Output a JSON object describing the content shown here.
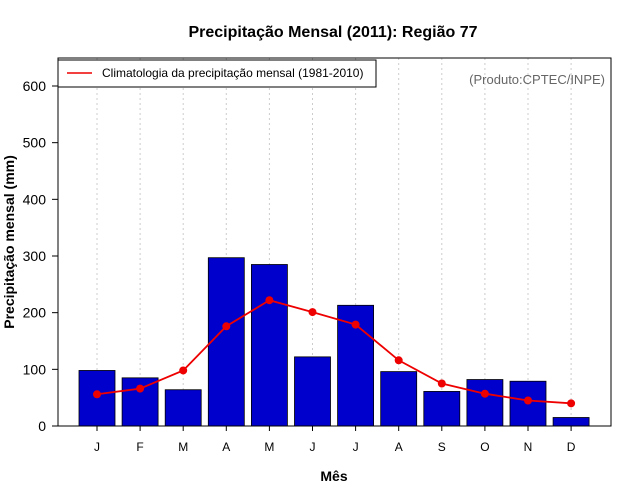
{
  "chart_data": {
    "type": "bar",
    "title": "Precipitação Mensal (2011): Região 77",
    "xlabel": "Mês",
    "ylabel": "Precipitação mensal (mm)",
    "ylim": [
      0,
      650
    ],
    "yticks": [
      0,
      100,
      200,
      300,
      400,
      500,
      600
    ],
    "categories": [
      "J",
      "F",
      "M",
      "A",
      "M",
      "J",
      "J",
      "A",
      "S",
      "O",
      "N",
      "D"
    ],
    "grid": "vertical dotted",
    "legend_position": "top-left",
    "credit": "(Produto:CPTEC/INPE)",
    "series": [
      {
        "name": "Precipitação mensal (2011)",
        "kind": "bar",
        "color": "#0000CC",
        "values": [
          98,
          85,
          64,
          297,
          285,
          122,
          213,
          96,
          61,
          82,
          79,
          15
        ]
      },
      {
        "name": "Climatologia da precipitação mensal (1981-2010)",
        "kind": "line",
        "color": "#EE0000",
        "values": [
          56,
          66,
          98,
          176,
          222,
          201,
          179,
          116,
          75,
          57,
          45,
          40
        ]
      }
    ]
  }
}
